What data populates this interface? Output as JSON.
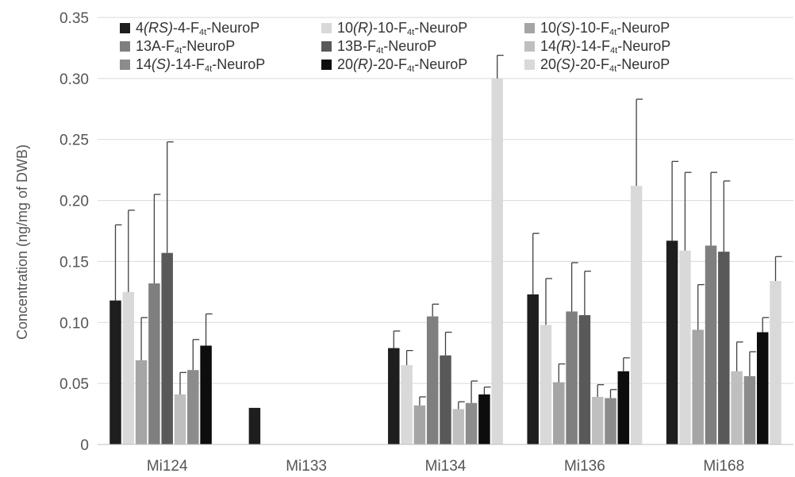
{
  "chart_data": {
    "type": "bar",
    "ylabel": "Concentration (ng/mg of DWB)",
    "ylim": [
      0,
      0.35
    ],
    "yticks": [
      "0",
      "0.05",
      "0.10",
      "0.15",
      "0.20",
      "0.25",
      "0.30",
      "0.35"
    ],
    "grid": true,
    "legend_position": "top",
    "error_bars": true,
    "categories": [
      "Mi124",
      "Mi133",
      "Mi134",
      "Mi136",
      "Mi168"
    ],
    "series": [
      {
        "name": "4(RS)-4-F4t-NeuroP",
        "label_parts": [
          {
            "t": "4"
          },
          {
            "t": "(RS)",
            "i": true
          },
          {
            "t": "-4-F"
          },
          {
            "t": "4t",
            "sub": true
          },
          {
            "t": "-NeuroP"
          }
        ],
        "color": "#1e1e1e",
        "values": [
          0.118,
          0.03,
          0.079,
          0.123,
          0.167
        ],
        "errors": [
          0.062,
          0.0,
          0.014,
          0.05,
          0.065
        ]
      },
      {
        "name": "10(R)-10-F4t-NeuroP",
        "label_parts": [
          {
            "t": "10"
          },
          {
            "t": "(R)",
            "i": true
          },
          {
            "t": "-10-F"
          },
          {
            "t": "4t",
            "sub": true
          },
          {
            "t": "-NeuroP"
          }
        ],
        "color": "#d9d9d9",
        "values": [
          0.125,
          null,
          0.065,
          0.098,
          0.159
        ],
        "errors": [
          0.067,
          null,
          0.012,
          0.038,
          0.064
        ]
      },
      {
        "name": "10(S)-10-F4t-NeuroP",
        "label_parts": [
          {
            "t": "10"
          },
          {
            "t": "(S)",
            "i": true
          },
          {
            "t": "-10-F"
          },
          {
            "t": "4t",
            "sub": true
          },
          {
            "t": "-NeuroP"
          }
        ],
        "color": "#a5a5a5",
        "values": [
          0.069,
          null,
          0.032,
          0.051,
          0.094
        ],
        "errors": [
          0.035,
          null,
          0.007,
          0.015,
          0.037
        ]
      },
      {
        "name": "13A-F4t-NeuroP",
        "label_parts": [
          {
            "t": "13A-F"
          },
          {
            "t": "4t",
            "sub": true
          },
          {
            "t": "-NeuroP"
          }
        ],
        "color": "#7f7f7f",
        "values": [
          0.132,
          null,
          0.105,
          0.109,
          0.163
        ],
        "errors": [
          0.073,
          null,
          0.01,
          0.04,
          0.06
        ]
      },
      {
        "name": "13B-F4t-NeuroP",
        "label_parts": [
          {
            "t": "13B-F"
          },
          {
            "t": "4t",
            "sub": true
          },
          {
            "t": "-NeuroP"
          }
        ],
        "color": "#595959",
        "values": [
          0.157,
          null,
          0.073,
          0.106,
          0.158
        ],
        "errors": [
          0.091,
          null,
          0.019,
          0.036,
          0.058
        ]
      },
      {
        "name": "14(R)-14-F4t-NeuroP",
        "label_parts": [
          {
            "t": "14"
          },
          {
            "t": "(R)",
            "i": true
          },
          {
            "t": "-14-F"
          },
          {
            "t": "4t",
            "sub": true
          },
          {
            "t": "-NeuroP"
          }
        ],
        "color": "#bfbfbf",
        "values": [
          0.041,
          null,
          0.029,
          0.039,
          0.06
        ],
        "errors": [
          0.018,
          null,
          0.006,
          0.01,
          0.024
        ]
      },
      {
        "name": "14(S)-14-F4t-NeuroP",
        "label_parts": [
          {
            "t": "14"
          },
          {
            "t": "(S)",
            "i": true
          },
          {
            "t": "-14-F"
          },
          {
            "t": "4t",
            "sub": true
          },
          {
            "t": "-NeuroP"
          }
        ],
        "color": "#8c8c8c",
        "values": [
          0.061,
          null,
          0.034,
          0.038,
          0.056
        ],
        "errors": [
          0.025,
          null,
          0.018,
          0.007,
          0.02
        ]
      },
      {
        "name": "20(R)-20-F4t-NeuroP",
        "label_parts": [
          {
            "t": "20"
          },
          {
            "t": "(R)",
            "i": true
          },
          {
            "t": "-20-F"
          },
          {
            "t": "4t",
            "sub": true
          },
          {
            "t": "-NeuroP"
          }
        ],
        "color": "#0d0d0d",
        "values": [
          0.081,
          null,
          0.041,
          0.06,
          0.092
        ],
        "errors": [
          0.026,
          null,
          0.006,
          0.011,
          0.012
        ]
      },
      {
        "name": "20(S)-20-F4t-NeuroP",
        "label_parts": [
          {
            "t": "20"
          },
          {
            "t": "(S)",
            "i": true
          },
          {
            "t": "-20-F"
          },
          {
            "t": "4t",
            "sub": true
          },
          {
            "t": "-NeuroP"
          }
        ],
        "color": "#d9d9d9",
        "values": [
          null,
          null,
          0.3,
          0.212,
          0.134
        ],
        "errors": [
          null,
          null,
          0.019,
          0.071,
          0.02
        ]
      }
    ]
  }
}
